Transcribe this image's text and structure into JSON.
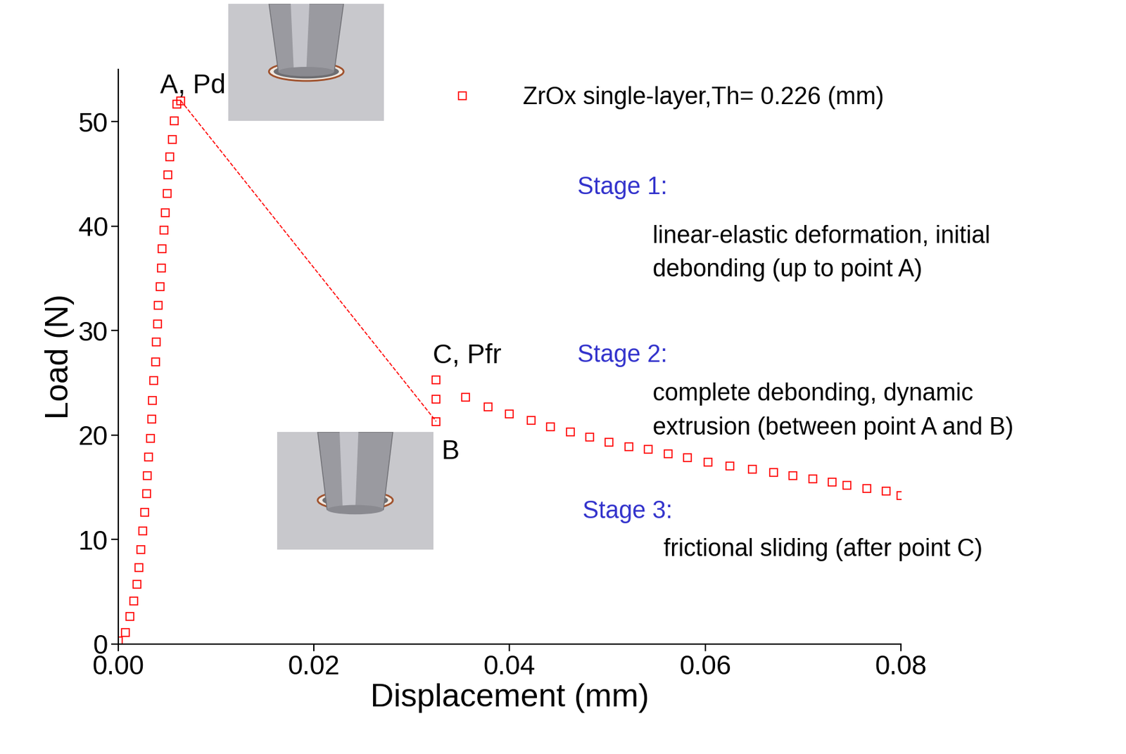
{
  "chart_data": {
    "type": "scatter",
    "x_label": "Displacement (mm)",
    "y_label": "Load (N)",
    "xlim": [
      0,
      0.08
    ],
    "ylim": [
      0,
      55
    ],
    "xticks": [
      {
        "value": 0,
        "label": "0.00"
      },
      {
        "value": 0.02,
        "label": "0.02"
      },
      {
        "value": 0.04,
        "label": "0.04"
      },
      {
        "value": 0.06,
        "label": "0.06"
      },
      {
        "value": 0.08,
        "label": "0.08"
      }
    ],
    "yticks": [
      0,
      10,
      20,
      30,
      40,
      50
    ],
    "legend": "upper right",
    "series": [
      {
        "name": "ZrOx single-layer,Th= 0.226 (mm)",
        "type": "scatter",
        "marker": "square",
        "color": "#ff0000",
        "x": [
          0.0,
          0.0007,
          0.0012,
          0.0016,
          0.0019,
          0.0021,
          0.0023,
          0.0025,
          0.0027,
          0.0029,
          0.003,
          0.0031,
          0.0033,
          0.0034,
          0.0035,
          0.0036,
          0.0038,
          0.0039,
          0.004,
          0.0041,
          0.0043,
          0.0044,
          0.0045,
          0.0047,
          0.0048,
          0.005,
          0.0051,
          0.0053,
          0.0055,
          0.0057,
          0.006,
          0.0064,
          0.0325,
          0.0325,
          0.0325,
          0.0355,
          0.0378,
          0.04,
          0.0422,
          0.0442,
          0.0462,
          0.0482,
          0.0502,
          0.0522,
          0.0542,
          0.0562,
          0.0582,
          0.0603,
          0.0625,
          0.0648,
          0.067,
          0.069,
          0.071,
          0.073,
          0.0745,
          0.0765,
          0.0785,
          0.08
        ],
        "values": [
          0.3,
          1.1,
          2.6,
          4.1,
          5.7,
          7.3,
          9.0,
          10.8,
          12.6,
          14.4,
          16.1,
          17.9,
          19.7,
          21.5,
          23.3,
          25.2,
          27.0,
          28.9,
          30.6,
          32.4,
          34.2,
          36.0,
          37.8,
          39.6,
          41.3,
          43.1,
          44.9,
          46.6,
          48.3,
          50.1,
          51.7,
          52.0,
          21.3,
          23.4,
          25.3,
          23.6,
          22.7,
          22.0,
          21.4,
          20.8,
          20.3,
          19.8,
          19.3,
          18.9,
          18.6,
          18.2,
          17.8,
          17.4,
          17.0,
          16.7,
          16.4,
          16.1,
          15.8,
          15.5,
          15.2,
          14.9,
          14.6,
          14.2
        ]
      },
      {
        "type": "line",
        "line_style": "dashed",
        "color": "#ff0000",
        "x": [
          0.0064,
          0.0325
        ],
        "values": [
          52.0,
          21.3
        ]
      }
    ],
    "point_labels": [
      {
        "text": "A, Pd",
        "x": 0.0064,
        "y": 52.0
      },
      {
        "text": "B",
        "x": 0.0325,
        "y": 21.3
      },
      {
        "text": "C, Pfr",
        "x": 0.0325,
        "y": 25.3
      }
    ],
    "annotations": [
      {
        "title": "Stage 1:",
        "title_color": "#3333cc",
        "text": "linear-elastic deformation, initial\ndebonding (up to point A)"
      },
      {
        "title": "Stage 2:",
        "title_color": "#3333cc",
        "text": "complete debonding, dynamic\nextrusion (between point A and B)"
      },
      {
        "title": "Stage 3:",
        "title_color": "#3333cc",
        "text": "frictional sliding (after point C)"
      }
    ]
  }
}
